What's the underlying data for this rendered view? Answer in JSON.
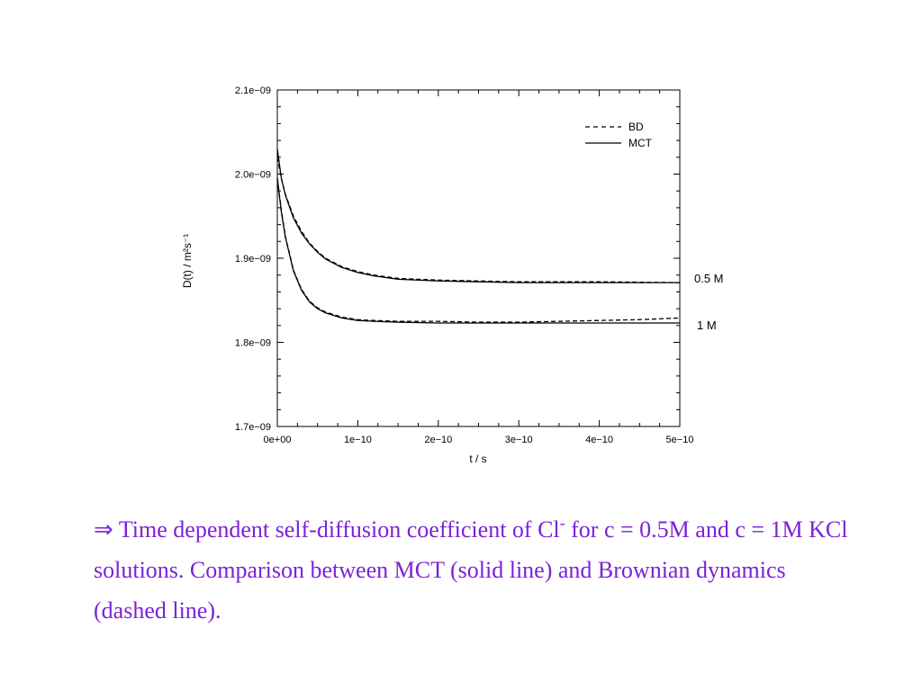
{
  "chart_data": {
    "type": "line",
    "xlabel": "t / s",
    "ylabel": "D(t) / m²s⁻¹",
    "xlim": [
      0,
      5e-10
    ],
    "ylim": [
      1.7e-09,
      2.1e-09
    ],
    "x_ticks": [
      0,
      1e-10,
      2e-10,
      3e-10,
      4e-10,
      5e-10
    ],
    "x_tick_labels": [
      "0e+00",
      "1e−10",
      "2e−10",
      "3e−10",
      "4e−10",
      "5e−10"
    ],
    "y_ticks": [
      1.7e-09,
      1.8e-09,
      1.9e-09,
      2e-09,
      2.1e-09
    ],
    "y_tick_labels": [
      "1.7e−09",
      "1.8e−09",
      "1.9e−09",
      "2.0e−09",
      "2.1e−09"
    ],
    "grid": false,
    "legend_position": "top-right",
    "legend": [
      {
        "label": "BD",
        "style": "dashed"
      },
      {
        "label": "MCT",
        "style": "solid"
      }
    ],
    "annotations": [
      "0.5 M",
      "1 M"
    ],
    "series": [
      {
        "style": "solid",
        "group": "0.5 M",
        "x": [
          0,
          5e-12,
          1e-11,
          2e-11,
          3e-11,
          4e-11,
          5e-11,
          6e-11,
          8e-11,
          1e-10,
          1.2e-10,
          1.5e-10,
          2e-10,
          2.5e-10,
          3e-10,
          4e-10,
          5e-10
        ],
        "y": [
          2.03e-09,
          1.995e-09,
          1.975e-09,
          1.948e-09,
          1.93e-09,
          1.917e-09,
          1.907e-09,
          1.899e-09,
          1.889e-09,
          1.883e-09,
          1.879e-09,
          1.875e-09,
          1.873e-09,
          1.872e-09,
          1.871e-09,
          1.871e-09,
          1.871e-09
        ]
      },
      {
        "style": "dashed",
        "group": "0.5 M",
        "x": [
          0,
          5e-12,
          1e-11,
          2e-11,
          3e-11,
          4e-11,
          5e-11,
          6e-11,
          8e-11,
          1e-10,
          1.2e-10,
          1.5e-10,
          2e-10,
          2.5e-10,
          3e-10,
          4e-10,
          5e-10
        ],
        "y": [
          2.02e-09,
          1.995e-09,
          1.976e-09,
          1.95e-09,
          1.932e-09,
          1.918e-09,
          1.908e-09,
          1.9e-09,
          1.89e-09,
          1.884e-09,
          1.88e-09,
          1.876e-09,
          1.874e-09,
          1.873e-09,
          1.872e-09,
          1.872e-09,
          1.871e-09
        ]
      },
      {
        "style": "solid",
        "group": "1 M",
        "x": [
          0,
          5e-12,
          1e-11,
          2e-11,
          3e-11,
          4e-11,
          5e-11,
          6e-11,
          8e-11,
          1e-10,
          1.2e-10,
          1.5e-10,
          2e-10,
          2.5e-10,
          3e-10,
          4e-10,
          5e-10
        ],
        "y": [
          1.995e-09,
          1.955e-09,
          1.925e-09,
          1.885e-09,
          1.862e-09,
          1.848e-09,
          1.84e-09,
          1.835e-09,
          1.829e-09,
          1.826e-09,
          1.825e-09,
          1.824e-09,
          1.823e-09,
          1.823e-09,
          1.823e-09,
          1.823e-09,
          1.823e-09
        ]
      },
      {
        "style": "dashed",
        "group": "1 M",
        "x": [
          0,
          5e-12,
          1e-11,
          2e-11,
          3e-11,
          4e-11,
          5e-11,
          6e-11,
          8e-11,
          1e-10,
          1.2e-10,
          1.5e-10,
          2e-10,
          2.5e-10,
          3e-10,
          3.5e-10,
          4e-10,
          4.5e-10,
          5e-10
        ],
        "y": [
          1.995e-09,
          1.957e-09,
          1.926e-09,
          1.886e-09,
          1.863e-09,
          1.849e-09,
          1.841e-09,
          1.836e-09,
          1.83e-09,
          1.827e-09,
          1.826e-09,
          1.825e-09,
          1.825e-09,
          1.824e-09,
          1.824e-09,
          1.825e-09,
          1.826e-09,
          1.827e-09,
          1.829e-09
        ]
      }
    ]
  },
  "caption": {
    "arrow": "⇒",
    "part1": " Time dependent self-diffusion coefficient of Cl",
    "superscript": "-",
    "part2": " for c = 0.5M and c = 1M KCl solutions. Comparison between MCT (solid line) and Brownian dynamics (dashed line)."
  }
}
